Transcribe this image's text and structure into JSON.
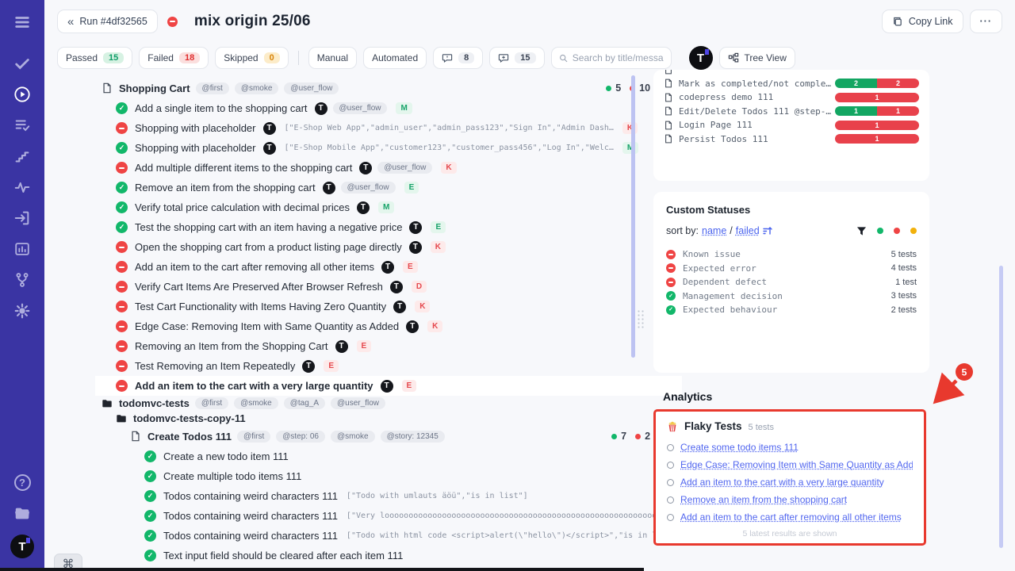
{
  "colors": {
    "accent": "#3a34a3",
    "passed": "#12b76a",
    "failed": "#ef4444",
    "skipped": "#f2b10c",
    "link": "#4a63ee",
    "annotation": "#e8392e"
  },
  "sidebar": {
    "top_icons": [
      "menu",
      "checks",
      "runs",
      "test-list",
      "steps",
      "activity",
      "import",
      "reports",
      "branches",
      "settings"
    ],
    "bottom_icons": [
      "help",
      "projects",
      "user"
    ],
    "help_glyph": "?",
    "avatar_letter": "T"
  },
  "header": {
    "back_glyph": "«",
    "run_label": "Run #4df32565",
    "title": "mix origin 25/06",
    "copy_link_label": "Copy Link",
    "more_label": "···"
  },
  "filters": {
    "passed": {
      "label": "Passed",
      "count": "15"
    },
    "failed": {
      "label": "Failed",
      "count": "18"
    },
    "skipped": {
      "label": "Skipped",
      "count": "0"
    },
    "manual": "Manual",
    "automated": "Automated",
    "comments_count": "8",
    "comment_adds_count": "15",
    "search_placeholder": "Search by title/message",
    "avatar_letter": "T",
    "tree_view_label": "Tree View"
  },
  "test_tree": {
    "rows": [
      {
        "kind": "suite",
        "depth": 0,
        "title": "Shopping Cart",
        "tags": [
          "@first",
          "@smoke",
          "@user_flow"
        ],
        "counts": {
          "passed": "5",
          "failed": "10",
          "skipped": "0"
        }
      },
      {
        "kind": "test",
        "depth": 1,
        "status": "passed",
        "title": "Add a single item to the shopping cart",
        "logo": true,
        "tags": [
          "@user_flow"
        ],
        "badge": {
          "letter": "M",
          "tone": "green"
        }
      },
      {
        "kind": "test",
        "depth": 1,
        "status": "failed",
        "title": "Shopping with placeholder",
        "logo": true,
        "params": "[\"E-Shop Web App\",\"admin_user\",\"admin_pass123\",\"Sign In\",\"Admin Dash…",
        "badge": {
          "letter": "K",
          "tone": "red"
        }
      },
      {
        "kind": "test",
        "depth": 1,
        "status": "passed",
        "title": "Shopping with placeholder",
        "logo": true,
        "params": "[\"E-Shop Mobile App\",\"customer123\",\"customer_pass456\",\"Log In\",\"Welc…",
        "badge": {
          "letter": "M",
          "tone": "green"
        }
      },
      {
        "kind": "test",
        "depth": 1,
        "status": "failed",
        "title": "Add multiple different items to the shopping cart",
        "logo": true,
        "tags": [
          "@user_flow"
        ],
        "badge": {
          "letter": "K",
          "tone": "red"
        }
      },
      {
        "kind": "test",
        "depth": 1,
        "status": "passed",
        "title": "Remove an item from the shopping cart",
        "logo": true,
        "tags": [
          "@user_flow"
        ],
        "badge": {
          "letter": "E",
          "tone": "green"
        }
      },
      {
        "kind": "test",
        "depth": 1,
        "status": "passed",
        "title": "Verify total price calculation with decimal prices",
        "logo": true,
        "badge": {
          "letter": "M",
          "tone": "green"
        }
      },
      {
        "kind": "test",
        "depth": 1,
        "status": "passed",
        "title": "Test the shopping cart with an item having a negative price",
        "logo": true,
        "badge": {
          "letter": "E",
          "tone": "green"
        }
      },
      {
        "kind": "test",
        "depth": 1,
        "status": "failed",
        "title": "Open the shopping cart from a product listing page directly",
        "logo": true,
        "badge": {
          "letter": "K",
          "tone": "red"
        }
      },
      {
        "kind": "test",
        "depth": 1,
        "status": "failed",
        "title": "Add an item to the cart after removing all other items",
        "logo": true,
        "badge": {
          "letter": "E",
          "tone": "red"
        }
      },
      {
        "kind": "test",
        "depth": 1,
        "status": "failed",
        "title": "Verify Cart Items Are Preserved After Browser Refresh",
        "logo": true,
        "badge": {
          "letter": "D",
          "tone": "red"
        }
      },
      {
        "kind": "test",
        "depth": 1,
        "status": "failed",
        "title": "Test Cart Functionality with Items Having Zero Quantity",
        "logo": true,
        "badge": {
          "letter": "K",
          "tone": "red"
        }
      },
      {
        "kind": "test",
        "depth": 1,
        "status": "failed",
        "title": "Edge Case: Removing Item with Same Quantity as Added",
        "logo": true,
        "badge": {
          "letter": "K",
          "tone": "red"
        }
      },
      {
        "kind": "test",
        "depth": 1,
        "status": "failed",
        "title": "Removing an Item from the Shopping Cart",
        "logo": true,
        "badge": {
          "letter": "E",
          "tone": "red"
        }
      },
      {
        "kind": "test",
        "depth": 1,
        "status": "failed",
        "title": "Test Removing an Item Repeatedly",
        "logo": true,
        "badge": {
          "letter": "E",
          "tone": "red"
        }
      },
      {
        "kind": "test",
        "depth": 1,
        "status": "failed",
        "title": "Add an item to the cart with a very large quantity",
        "logo": true,
        "selected": true,
        "badge": {
          "letter": "E",
          "tone": "red"
        }
      },
      {
        "kind": "folder",
        "depth": 0,
        "title": "todomvc-tests",
        "tags": [
          "@first",
          "@smoke",
          "@tag_A",
          "@user_flow"
        ]
      },
      {
        "kind": "folder",
        "depth": 1,
        "title": "todomvc-tests-copy-11"
      },
      {
        "kind": "suite",
        "depth": 2,
        "title": "Create Todos 111",
        "tags": [
          "@first",
          "@step: 06",
          "@smoke",
          "@story: 12345"
        ],
        "counts": {
          "passed": "7",
          "failed": "2",
          "skipped": "0"
        }
      },
      {
        "kind": "test",
        "depth": 3,
        "status": "passed",
        "title": "Create a new todo item 111"
      },
      {
        "kind": "test",
        "depth": 3,
        "status": "passed",
        "title": "Create multiple todo items 111"
      },
      {
        "kind": "test",
        "depth": 3,
        "status": "passed",
        "title": "Todos containing weird characters 111",
        "params": "[\"Todo with umlauts äöü\",\"is in list\"]"
      },
      {
        "kind": "test",
        "depth": 3,
        "status": "passed",
        "title": "Todos containing weird characters 111",
        "params": "[\"Very looooooooooooooooooooooooooooooooooooooooooooooooooooooooooooo…"
      },
      {
        "kind": "test",
        "depth": 3,
        "status": "passed",
        "title": "Todos containing weird characters 111",
        "params": "[\"Todo with html code <script>alert(\\\"hello\\\")</script>\",\"is in list…"
      },
      {
        "kind": "test",
        "depth": 3,
        "status": "passed",
        "title": "Text input field should be cleared after each item 111"
      }
    ]
  },
  "right_panel": {
    "files": [
      {
        "name": "Mark as completed/not comple…",
        "segments": [
          {
            "color": "green",
            "value": "2"
          },
          {
            "color": "red",
            "value": "2"
          }
        ]
      },
      {
        "name": "codepress demo 111",
        "segments": [
          {
            "color": "red",
            "value": "1"
          }
        ]
      },
      {
        "name": "Edit/Delete Todos 111 @step-…",
        "segments": [
          {
            "color": "green",
            "value": "1"
          },
          {
            "color": "red",
            "value": "1"
          }
        ]
      },
      {
        "name": "Login Page 111",
        "segments": [
          {
            "color": "red",
            "value": "1"
          }
        ]
      },
      {
        "name": "Persist Todos 111",
        "segments": [
          {
            "color": "red",
            "value": "1"
          }
        ]
      }
    ],
    "custom_statuses": {
      "title": "Custom Statuses",
      "sort_by_label": "sort by:",
      "sort_links": [
        "name",
        "failed"
      ],
      "separator": "/",
      "rows": [
        {
          "status": "failed",
          "name": "Known issue",
          "count": "5 tests"
        },
        {
          "status": "failed",
          "name": "Expected error",
          "count": "4 tests"
        },
        {
          "status": "failed",
          "name": "Dependent defect",
          "count": "1 test"
        },
        {
          "status": "passed",
          "name": "Management decision",
          "count": "3 tests"
        },
        {
          "status": "passed",
          "name": "Expected behaviour",
          "count": "2 tests"
        }
      ]
    },
    "analytics": {
      "title": "Analytics",
      "annotation_badge": "5",
      "flaky": {
        "title": "Flaky Tests",
        "count": "5 tests",
        "items": [
          "Create some todo items 111",
          "Edge Case: Removing Item with Same Quantity as Added",
          "Add an item to the cart with a very large quantity",
          "Remove an item from the shopping cart",
          "Add an item to the cart after removing all other items"
        ],
        "footer": "5 latest results are shown"
      }
    }
  },
  "misc": {
    "command_key": "⌘"
  }
}
